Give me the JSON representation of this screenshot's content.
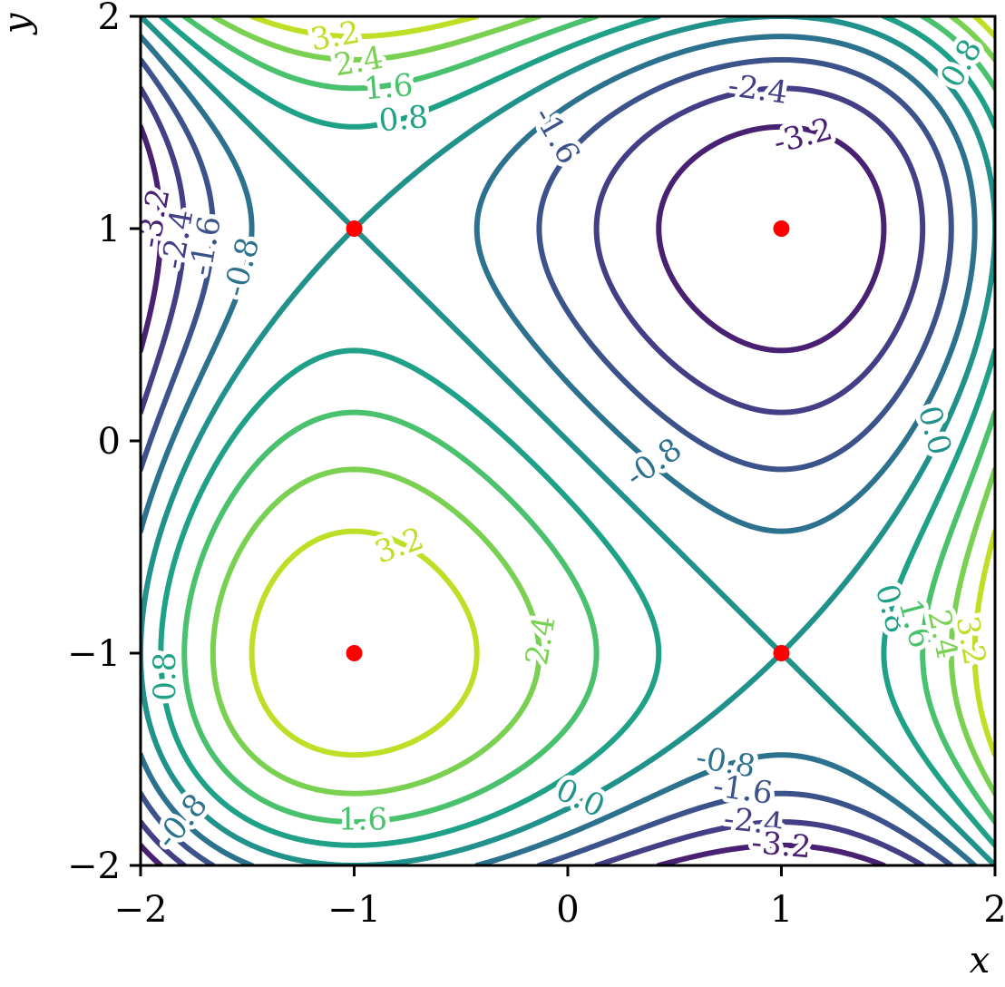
{
  "chart_data": {
    "type": "contour",
    "xlabel": "x",
    "ylabel": "y",
    "xlim": [
      -2,
      2
    ],
    "ylim": [
      -2,
      2
    ],
    "xticks": [
      {
        "value": -2,
        "label": "−2"
      },
      {
        "value": -1,
        "label": "−1"
      },
      0,
      1,
      2
    ],
    "yticks": [
      {
        "value": -2,
        "label": "−2"
      },
      {
        "value": -1,
        "label": "−1"
      },
      0,
      1,
      2
    ],
    "levels": [
      -3.2,
      -2.4,
      -1.6,
      -0.8,
      {
        "value": 0,
        "label": "0.0"
      },
      0.8,
      1.6,
      2.4,
      3.2
    ],
    "colors": [
      "#482173",
      "#433e85",
      "#3b528b",
      "#2c728e",
      "#21918c",
      "#1fa187",
      "#4ac16d",
      "#7ad151",
      "#bddf26"
    ],
    "points": {
      "x": [
        -1,
        1,
        1,
        -1
      ],
      "y": [
        1,
        1,
        -1,
        -1
      ],
      "color": "#ff0000"
    }
  }
}
